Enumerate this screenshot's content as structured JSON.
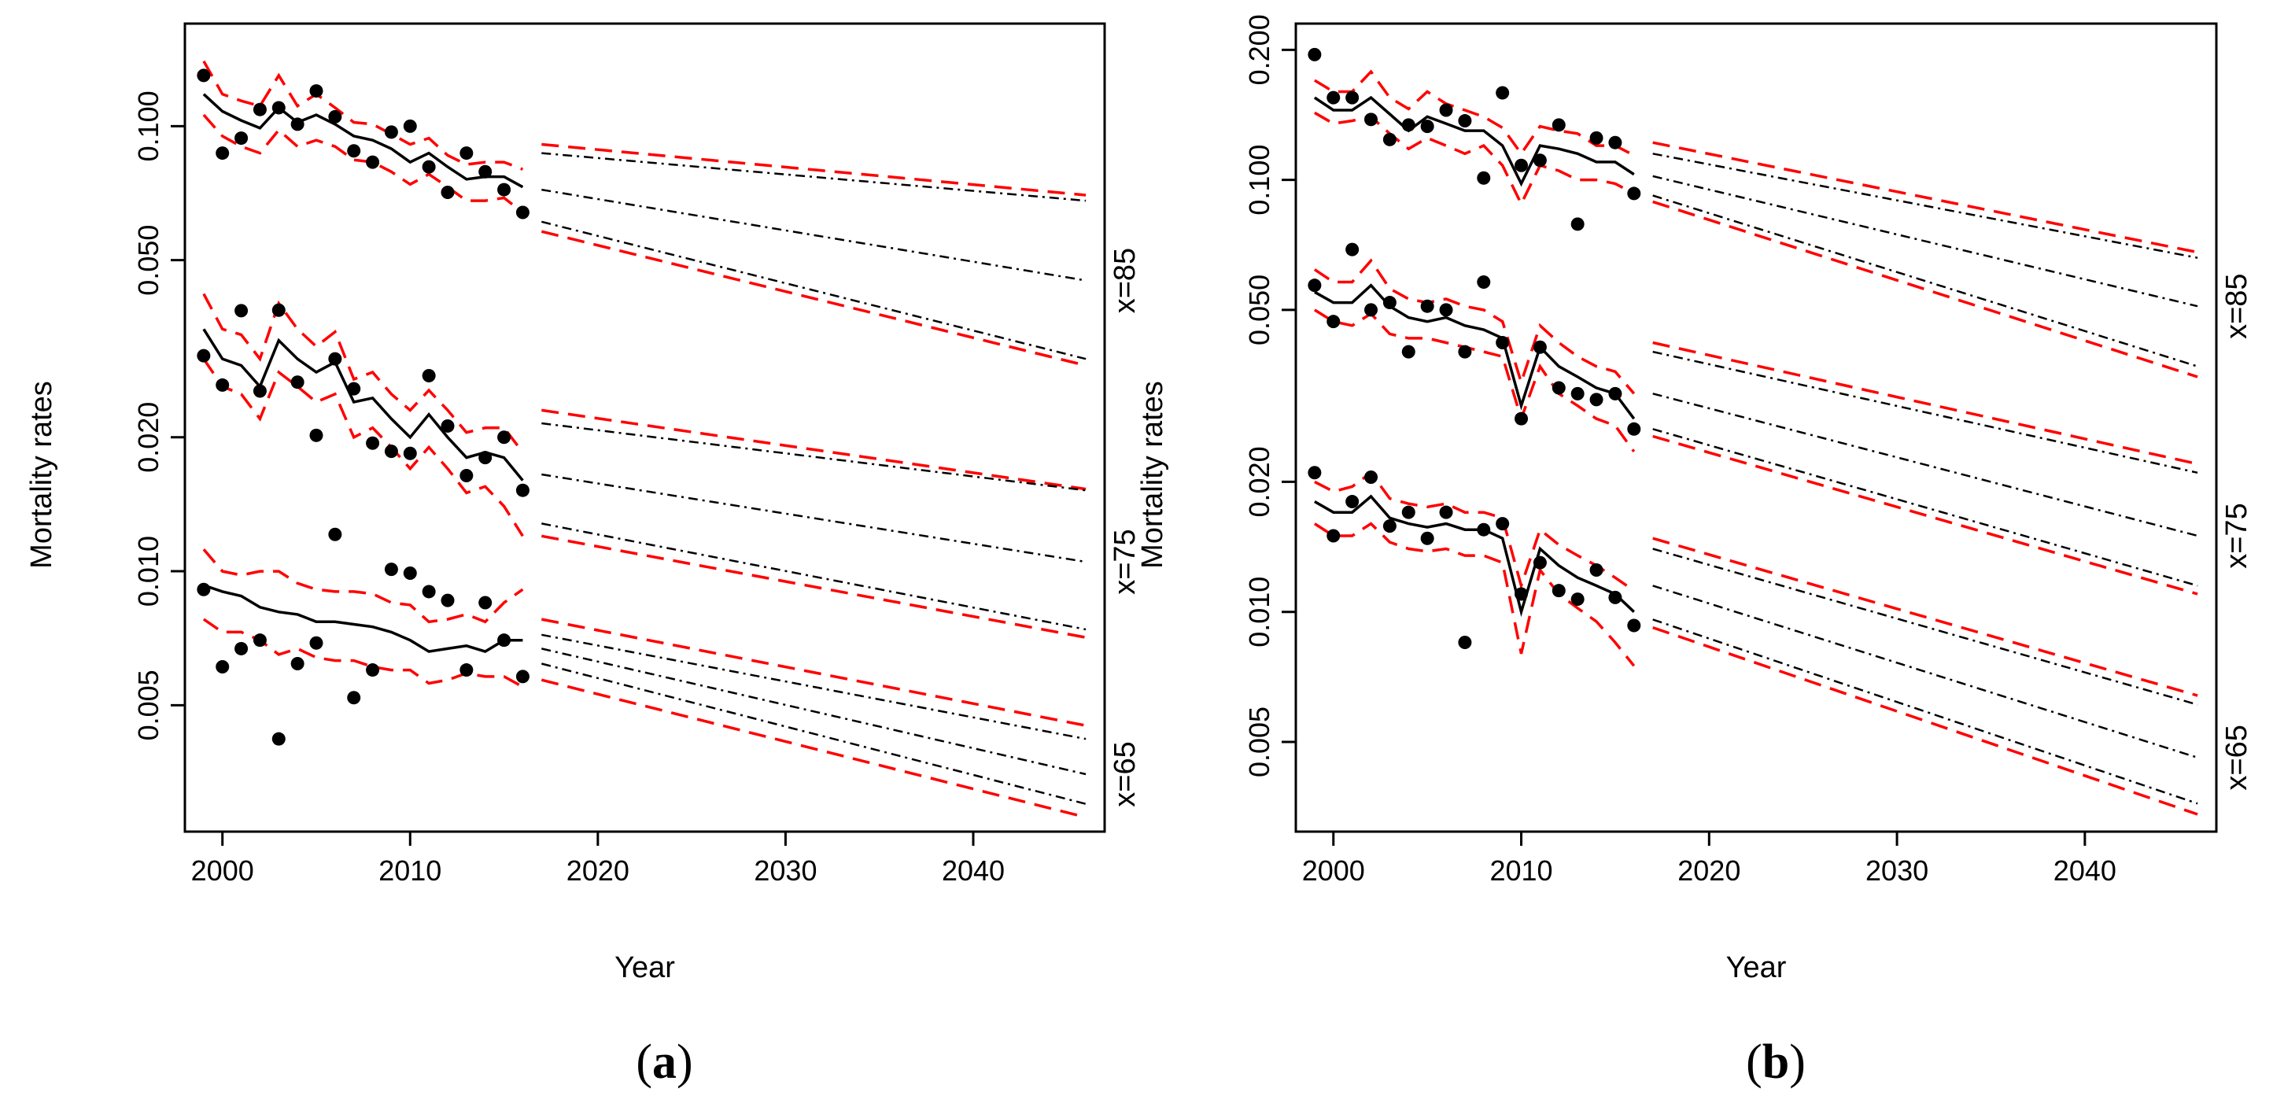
{
  "figure": {
    "panel_captions": [
      {
        "open": "(",
        "letter": "a",
        "close": ")"
      },
      {
        "open": "(",
        "letter": "b",
        "close": ")"
      }
    ]
  },
  "chart_data": [
    {
      "type": "line",
      "panel": "a",
      "xlabel": "Year",
      "ylabel": "Mortality rates",
      "yscale": "log",
      "xlim": [
        1998,
        2047
      ],
      "ylim": [
        0.0026,
        0.17
      ],
      "x_ticks": [
        2000,
        2010,
        2020,
        2030,
        2040
      ],
      "x_tick_labels": [
        "2000",
        "2010",
        "2020",
        "2030",
        "2040"
      ],
      "y_ticks": [
        0.005,
        0.01,
        0.02,
        0.05,
        0.1
      ],
      "y_tick_labels": [
        "0.005",
        "0.010",
        "0.020",
        "0.050",
        "0.100"
      ],
      "groups": [
        {
          "label": "x=85",
          "observed_years": [
            1999,
            2000,
            2001,
            2002,
            2003,
            2004,
            2005,
            2006,
            2007,
            2008,
            2009,
            2010,
            2011,
            2012,
            2013,
            2014,
            2015,
            2016
          ],
          "observed": [
            0.13,
            0.087,
            0.094,
            0.109,
            0.11,
            0.101,
            0.12,
            0.105,
            0.088,
            0.083,
            0.097,
            0.1,
            0.081,
            0.071,
            0.087,
            0.079,
            0.072,
            0.064
          ],
          "fitted": [
            0.118,
            0.108,
            0.103,
            0.099,
            0.11,
            0.102,
            0.106,
            0.101,
            0.095,
            0.093,
            0.089,
            0.083,
            0.087,
            0.081,
            0.076,
            0.077,
            0.077,
            0.073
          ],
          "fitted_upper": [
            0.14,
            0.118,
            0.114,
            0.111,
            0.13,
            0.111,
            0.118,
            0.11,
            0.102,
            0.101,
            0.096,
            0.091,
            0.094,
            0.086,
            0.082,
            0.083,
            0.083,
            0.08
          ],
          "fitted_lower": [
            0.106,
            0.095,
            0.09,
            0.087,
            0.098,
            0.09,
            0.093,
            0.09,
            0.084,
            0.083,
            0.079,
            0.074,
            0.078,
            0.073,
            0.068,
            0.068,
            0.069,
            0.064
          ],
          "forecast_years": [
            2017,
            2046
          ],
          "forecast_center": [
            0.072,
            0.045
          ],
          "forecast_inner_upper": [
            0.087,
            0.068
          ],
          "forecast_inner_lower": [
            0.061,
            0.03
          ],
          "forecast_outer_upper": [
            0.091,
            0.07
          ],
          "forecast_outer_lower": [
            0.058,
            0.029
          ]
        },
        {
          "label": "x=75",
          "observed_years": [
            1999,
            2000,
            2001,
            2002,
            2003,
            2004,
            2005,
            2006,
            2007,
            2008,
            2009,
            2010,
            2011,
            2012,
            2013,
            2014,
            2015,
            2016
          ],
          "observed": [
            0.0305,
            0.0262,
            0.0385,
            0.0254,
            0.0386,
            0.0266,
            0.0202,
            0.03,
            0.0257,
            0.0194,
            0.0186,
            0.0184,
            0.0275,
            0.0212,
            0.0164,
            0.018,
            0.02,
            0.0152
          ],
          "fitted": [
            0.035,
            0.03,
            0.029,
            0.026,
            0.033,
            0.03,
            0.028,
            0.0295,
            0.024,
            0.0245,
            0.022,
            0.02,
            0.0225,
            0.02,
            0.018,
            0.0185,
            0.018,
            0.016
          ],
          "fitted_upper": [
            0.042,
            0.035,
            0.034,
            0.03,
            0.04,
            0.035,
            0.032,
            0.0345,
            0.027,
            0.028,
            0.025,
            0.023,
            0.0255,
            0.023,
            0.0205,
            0.021,
            0.021,
            0.0185
          ],
          "fitted_lower": [
            0.03,
            0.026,
            0.025,
            0.022,
            0.028,
            0.026,
            0.024,
            0.025,
            0.02,
            0.021,
            0.019,
            0.017,
            0.019,
            0.017,
            0.015,
            0.0155,
            0.014,
            0.012
          ],
          "forecast_years": [
            2017,
            2046
          ],
          "forecast_center": [
            0.0165,
            0.0105
          ],
          "forecast_inner_upper": [
            0.0215,
            0.0152
          ],
          "forecast_inner_lower": [
            0.0128,
            0.0074
          ],
          "forecast_outer_upper": [
            0.023,
            0.0153
          ],
          "forecast_outer_lower": [
            0.012,
            0.0071
          ]
        },
        {
          "label": "x=65",
          "observed_years": [
            1999,
            2000,
            2001,
            2002,
            2003,
            2004,
            2005,
            2006,
            2007,
            2008,
            2009,
            2010,
            2011,
            2012,
            2013,
            2014,
            2015,
            2016
          ],
          "observed": [
            0.0091,
            0.0061,
            0.0067,
            0.007,
            0.0042,
            0.0062,
            0.0069,
            0.0121,
            0.0052,
            0.006,
            0.0101,
            0.0099,
            0.009,
            0.0086,
            0.006,
            0.0085,
            0.007,
            0.0058
          ],
          "fitted": [
            0.0093,
            0.009,
            0.0088,
            0.0083,
            0.0081,
            0.008,
            0.0077,
            0.0077,
            0.0076,
            0.0075,
            0.0073,
            0.007,
            0.0066,
            0.0067,
            0.0068,
            0.0066,
            0.007,
            0.007
          ],
          "fitted_upper": [
            0.0112,
            0.01,
            0.0098,
            0.01,
            0.01,
            0.0094,
            0.0091,
            0.009,
            0.009,
            0.0089,
            0.0085,
            0.0084,
            0.0077,
            0.0078,
            0.008,
            0.0077,
            0.0085,
            0.0091
          ],
          "fitted_lower": [
            0.0078,
            0.0073,
            0.0073,
            0.007,
            0.0065,
            0.0067,
            0.0064,
            0.0063,
            0.0063,
            0.0061,
            0.006,
            0.006,
            0.0056,
            0.0057,
            0.0059,
            0.0058,
            0.0058,
            0.0055
          ],
          "forecast_years": [
            2017,
            2046
          ],
          "forecast_center": [
            0.0067,
            0.0035
          ],
          "forecast_inner_upper": [
            0.0072,
            0.0042
          ],
          "forecast_inner_lower": [
            0.0062,
            0.003
          ],
          "forecast_outer_upper": [
            0.0078,
            0.0045
          ],
          "forecast_outer_lower": [
            0.0057,
            0.0028
          ]
        }
      ]
    },
    {
      "type": "line",
      "panel": "b",
      "xlabel": "Year",
      "ylabel": "Mortality rates",
      "yscale": "log",
      "xlim": [
        1998,
        2047
      ],
      "ylim": [
        0.0031,
        0.23
      ],
      "x_ticks": [
        2000,
        2010,
        2020,
        2030,
        2040
      ],
      "x_tick_labels": [
        "2000",
        "2010",
        "2020",
        "2030",
        "2040"
      ],
      "y_ticks": [
        0.005,
        0.01,
        0.02,
        0.05,
        0.1,
        0.2
      ],
      "y_tick_labels": [
        "0.005",
        "0.010",
        "0.020",
        "0.050",
        "0.100",
        "0.200"
      ],
      "groups": [
        {
          "label": "x=85",
          "observed_years": [
            1999,
            2000,
            2001,
            2002,
            2003,
            2004,
            2005,
            2006,
            2007,
            2008,
            2009,
            2010,
            2011,
            2012,
            2013,
            2014,
            2015,
            2016
          ],
          "observed": [
            0.195,
            0.155,
            0.155,
            0.138,
            0.124,
            0.134,
            0.133,
            0.145,
            0.137,
            0.101,
            0.159,
            0.108,
            0.111,
            0.134,
            0.079,
            0.125,
            0.122,
            0.093
          ],
          "fitted": [
            0.155,
            0.145,
            0.145,
            0.155,
            0.142,
            0.13,
            0.14,
            0.135,
            0.13,
            0.13,
            0.12,
            0.098,
            0.12,
            0.118,
            0.115,
            0.11,
            0.11,
            0.103
          ],
          "fitted_upper": [
            0.17,
            0.16,
            0.16,
            0.178,
            0.155,
            0.146,
            0.16,
            0.15,
            0.145,
            0.14,
            0.132,
            0.115,
            0.133,
            0.13,
            0.128,
            0.12,
            0.12,
            0.114
          ],
          "fitted_lower": [
            0.143,
            0.135,
            0.137,
            0.14,
            0.128,
            0.118,
            0.125,
            0.12,
            0.115,
            0.12,
            0.108,
            0.088,
            0.108,
            0.105,
            0.1,
            0.1,
            0.098,
            0.093
          ],
          "forecast_years": [
            2017,
            2046
          ],
          "forecast_center": [
            0.102,
            0.051
          ],
          "forecast_inner_upper": [
            0.115,
            0.066
          ],
          "forecast_inner_lower": [
            0.092,
            0.037
          ],
          "forecast_outer_upper": [
            0.122,
            0.068
          ],
          "forecast_outer_lower": [
            0.089,
            0.035
          ]
        },
        {
          "label": "x=75",
          "observed_years": [
            1999,
            2000,
            2001,
            2002,
            2003,
            2004,
            2005,
            2006,
            2007,
            2008,
            2009,
            2010,
            2011,
            2012,
            2013,
            2014,
            2015,
            2016
          ],
          "observed": [
            0.057,
            0.047,
            0.069,
            0.05,
            0.052,
            0.04,
            0.051,
            0.05,
            0.04,
            0.058,
            0.042,
            0.028,
            0.041,
            0.033,
            0.032,
            0.031,
            0.032,
            0.0265
          ],
          "fitted": [
            0.055,
            0.052,
            0.052,
            0.057,
            0.051,
            0.048,
            0.047,
            0.048,
            0.046,
            0.045,
            0.043,
            0.03,
            0.041,
            0.037,
            0.035,
            0.033,
            0.032,
            0.028
          ],
          "fitted_upper": [
            0.062,
            0.058,
            0.058,
            0.065,
            0.056,
            0.053,
            0.052,
            0.053,
            0.051,
            0.05,
            0.047,
            0.034,
            0.046,
            0.042,
            0.039,
            0.037,
            0.036,
            0.032
          ],
          "fitted_lower": [
            0.05,
            0.047,
            0.046,
            0.049,
            0.044,
            0.043,
            0.043,
            0.042,
            0.041,
            0.04,
            0.039,
            0.028,
            0.037,
            0.032,
            0.03,
            0.028,
            0.027,
            0.0235
          ],
          "forecast_years": [
            2017,
            2046
          ],
          "forecast_center": [
            0.032,
            0.015
          ],
          "forecast_inner_upper": [
            0.04,
            0.021
          ],
          "forecast_inner_lower": [
            0.0265,
            0.0115
          ],
          "forecast_outer_upper": [
            0.042,
            0.022
          ],
          "forecast_outer_lower": [
            0.0255,
            0.011
          ]
        },
        {
          "label": "x=65",
          "observed_years": [
            1999,
            2000,
            2001,
            2002,
            2003,
            2004,
            2005,
            2006,
            2007,
            2008,
            2009,
            2010,
            2011,
            2012,
            2013,
            2014,
            2015,
            2016
          ],
          "observed": [
            0.021,
            0.015,
            0.018,
            0.0205,
            0.0158,
            0.017,
            0.0148,
            0.017,
            0.0085,
            0.0155,
            0.016,
            0.011,
            0.013,
            0.0112,
            0.0107,
            0.0125,
            0.0108,
            0.0093
          ],
          "fitted": [
            0.018,
            0.017,
            0.017,
            0.0185,
            0.0165,
            0.016,
            0.0157,
            0.016,
            0.0155,
            0.0155,
            0.0148,
            0.01,
            0.014,
            0.0128,
            0.012,
            0.0115,
            0.011,
            0.01
          ],
          "fitted_upper": [
            0.02,
            0.019,
            0.0195,
            0.021,
            0.0183,
            0.0178,
            0.0175,
            0.0178,
            0.017,
            0.017,
            0.0165,
            0.0115,
            0.0155,
            0.0143,
            0.0135,
            0.0128,
            0.012,
            0.0112
          ],
          "fitted_lower": [
            0.016,
            0.015,
            0.015,
            0.016,
            0.0145,
            0.014,
            0.0138,
            0.014,
            0.0135,
            0.0135,
            0.013,
            0.008,
            0.0125,
            0.011,
            0.0102,
            0.0095,
            0.0085,
            0.0075
          ],
          "forecast_years": [
            2017,
            2046
          ],
          "forecast_center": [
            0.0115,
            0.0046
          ],
          "forecast_inner_upper": [
            0.014,
            0.0061
          ],
          "forecast_inner_lower": [
            0.0096,
            0.0036
          ],
          "forecast_outer_upper": [
            0.0148,
            0.0064
          ],
          "forecast_outer_lower": [
            0.0092,
            0.0034
          ]
        }
      ]
    }
  ]
}
